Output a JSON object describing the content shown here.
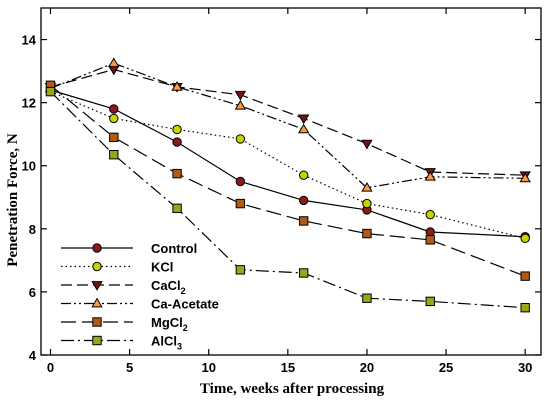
{
  "chart_data": {
    "type": "line",
    "xlabel": "Time, weeks after processing",
    "ylabel": "Penetration Force, N",
    "xlim": [
      -0.6,
      31
    ],
    "ylim": [
      4,
      15
    ],
    "xticks": [
      0,
      5,
      10,
      15,
      20,
      25,
      30
    ],
    "yticks": [
      4,
      6,
      8,
      10,
      12,
      14
    ],
    "grid": false,
    "legend_position": "bottom-left",
    "x": [
      0,
      4,
      8,
      12,
      16,
      20,
      24,
      30
    ],
    "series": [
      {
        "name": "Control",
        "name_main": "Control",
        "name_sub": "",
        "values": [
          12.4,
          11.8,
          10.75,
          9.5,
          8.9,
          8.6,
          7.9,
          7.75
        ],
        "color": "#8b1a1a",
        "marker": "circle",
        "dash": ""
      },
      {
        "name": "KCl",
        "name_main": "KCl",
        "name_sub": "",
        "values": [
          12.35,
          11.5,
          11.15,
          10.85,
          9.7,
          8.8,
          8.45,
          7.7
        ],
        "color": "#c8d400",
        "marker": "circle",
        "dash": "1.5,3"
      },
      {
        "name": "CaCl2",
        "name_main": "CaCl",
        "name_sub": "2",
        "values": [
          12.5,
          13.05,
          12.5,
          12.25,
          11.5,
          10.7,
          9.8,
          9.7
        ],
        "color": "#7a1010",
        "marker": "triangle-down",
        "dash": "11,5"
      },
      {
        "name": "Ca-Acetate",
        "name_main": "Ca-Acetate",
        "name_sub": "",
        "values": [
          12.45,
          13.25,
          12.5,
          11.9,
          11.15,
          9.3,
          9.65,
          9.6
        ],
        "color": "#ff9a3c",
        "marker": "triangle-up",
        "dash": "10,3,2,3,2,3"
      },
      {
        "name": "MgCl2",
        "name_main": "MgCl",
        "name_sub": "2",
        "values": [
          12.55,
          10.9,
          9.75,
          8.8,
          8.25,
          7.85,
          7.65,
          6.5
        ],
        "color": "#b35a12",
        "marker": "square",
        "dash": "15,6"
      },
      {
        "name": "AlCl3",
        "name_main": "AlCl",
        "name_sub": "3",
        "values": [
          12.35,
          10.35,
          8.65,
          6.7,
          6.6,
          5.8,
          5.7,
          5.5
        ],
        "color": "#9aa51a",
        "marker": "square",
        "dash": "13,4,2,4"
      }
    ]
  }
}
